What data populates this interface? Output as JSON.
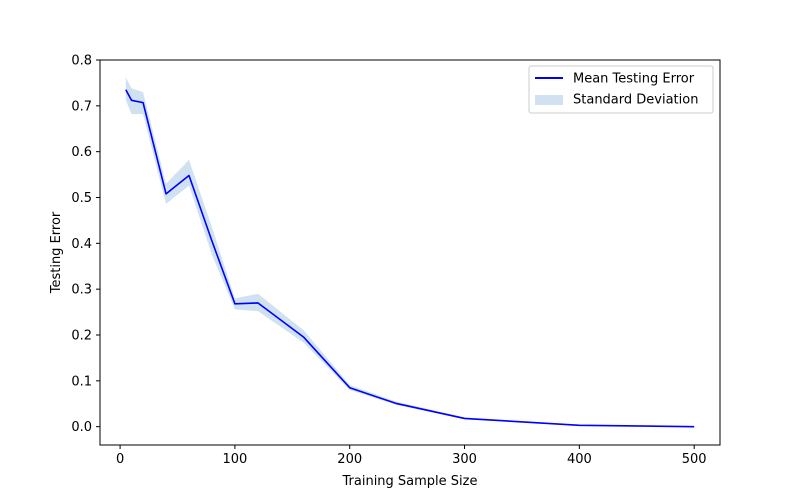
{
  "chart_data": {
    "type": "line",
    "title": "",
    "xlabel": "Training Sample Size",
    "ylabel": "Testing Error",
    "xlim": [
      -17.5,
      522.5
    ],
    "ylim": [
      -0.04,
      0.8
    ],
    "xticks": [
      0,
      100,
      200,
      300,
      400,
      500
    ],
    "yticks": [
      0.0,
      0.1,
      0.2,
      0.3,
      0.4,
      0.5,
      0.6,
      0.7,
      0.8
    ],
    "x": [
      5,
      10,
      20,
      40,
      60,
      80,
      100,
      120,
      160,
      200,
      240,
      300,
      400,
      500
    ],
    "series": [
      {
        "name": "Mean Testing Error",
        "kind": "line",
        "color": "#0000ff",
        "values": [
          0.735,
          0.712,
          0.707,
          0.508,
          0.548,
          0.405,
          0.268,
          0.27,
          0.195,
          0.085,
          0.051,
          0.018,
          0.003,
          0.0
        ]
      },
      {
        "name": "Standard Deviation",
        "kind": "band",
        "color": "#aac8e6",
        "lower": [
          0.712,
          0.682,
          0.682,
          0.486,
          0.526,
          0.375,
          0.256,
          0.252,
          0.183,
          0.08,
          0.048,
          0.016,
          0.002,
          -0.001
        ],
        "upper": [
          0.762,
          0.738,
          0.73,
          0.53,
          0.582,
          0.435,
          0.28,
          0.29,
          0.21,
          0.091,
          0.055,
          0.02,
          0.004,
          0.001
        ]
      }
    ],
    "legend": "top-right",
    "grid": false
  }
}
